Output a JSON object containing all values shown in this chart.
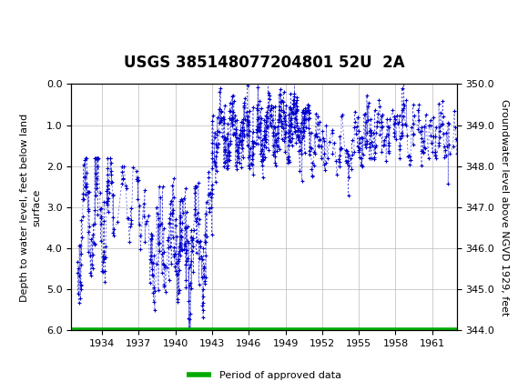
{
  "title": "USGS 385148077204801 52U  2A",
  "ylabel_left": "Depth to water level, feet below land\nsurface",
  "ylabel_right": "Groundwater level above NGVD 1929, feet",
  "ylim_left": [
    6.0,
    0.0
  ],
  "ylim_right": [
    344.0,
    350.0
  ],
  "xlim": [
    1931.5,
    1963.0
  ],
  "xticks": [
    1934,
    1937,
    1940,
    1943,
    1946,
    1949,
    1952,
    1955,
    1958,
    1961
  ],
  "yticks_left": [
    0.0,
    1.0,
    2.0,
    3.0,
    4.0,
    5.0,
    6.0
  ],
  "yticks_right": [
    344.0,
    345.0,
    346.0,
    347.0,
    348.0,
    349.0,
    350.0
  ],
  "header_color": "#1a6b3c",
  "header_text_color": "#ffffff",
  "data_color": "#0000cc",
  "approved_color": "#00aa00",
  "legend_label": "Period of approved data",
  "title_fontsize": 12,
  "axis_fontsize": 8,
  "tick_fontsize": 8,
  "background_color": "#ffffff",
  "grid_color": "#bbbbbb",
  "fig_width": 5.8,
  "fig_height": 4.3,
  "dpi": 100
}
